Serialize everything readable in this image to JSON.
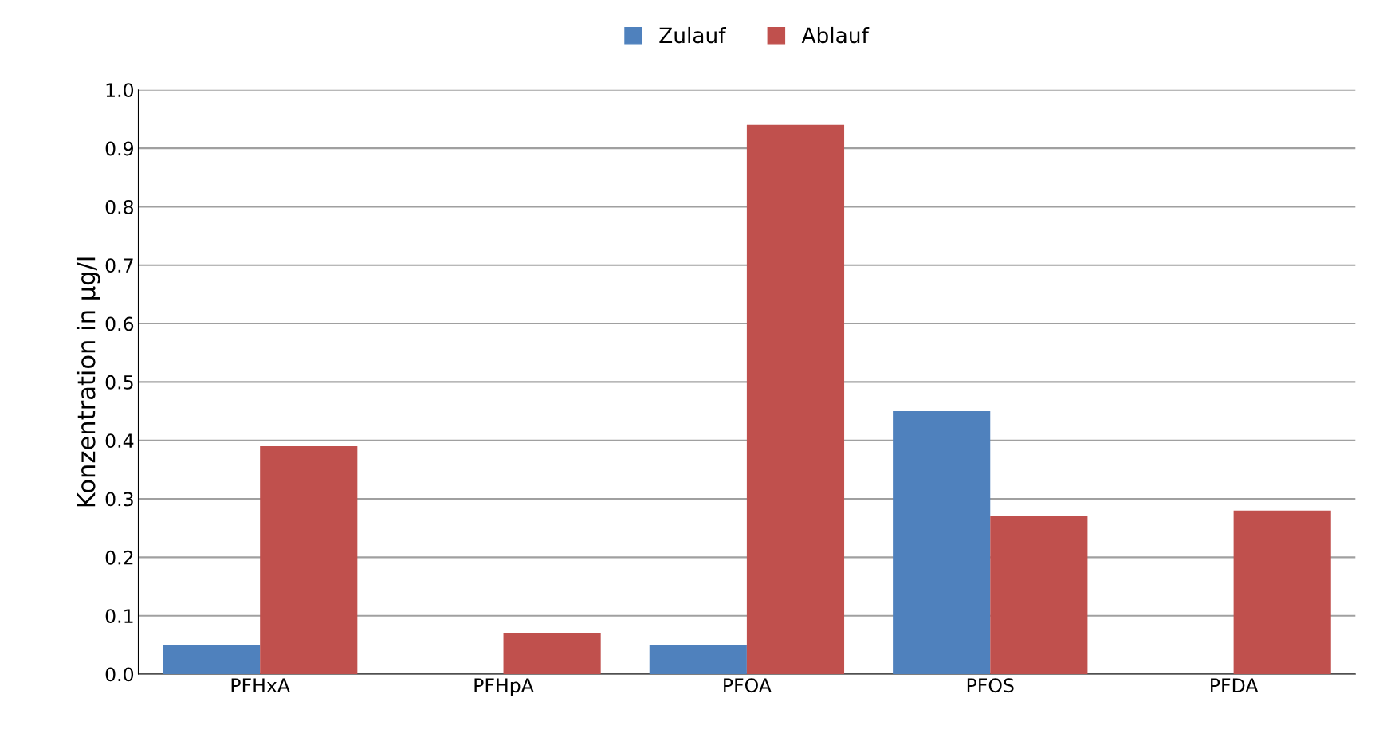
{
  "chart_data": {
    "type": "bar",
    "ylabel": "Konzentration in µg/l",
    "categories": [
      "PFHxA",
      "PFHpA",
      "PFOA",
      "PFOS",
      "PFDA"
    ],
    "series": [
      {
        "name": "Zulauf",
        "color": "#4f81bd",
        "values": [
          0.05,
          0,
          0.05,
          0.45,
          0
        ]
      },
      {
        "name": "Ablauf",
        "color": "#c0504d",
        "values": [
          0.39,
          0.07,
          0.94,
          0.27,
          0.28
        ]
      }
    ],
    "ylim": [
      0,
      1.0
    ],
    "yticks": [
      {
        "value": 0,
        "label": "0.0"
      },
      {
        "value": 0.1,
        "label": "0.1"
      },
      {
        "value": 0.2,
        "label": "0.2"
      },
      {
        "value": 0.3,
        "label": "0.3"
      },
      {
        "value": 0.4,
        "label": "0.4"
      },
      {
        "value": 0.5,
        "label": "0.5"
      },
      {
        "value": 0.6,
        "label": "0.6"
      },
      {
        "value": 0.7,
        "label": "0.7"
      },
      {
        "value": 0.8,
        "label": "0.8"
      },
      {
        "value": 0.9,
        "label": "0.9"
      },
      {
        "value": 1.0,
        "label": "1.0"
      }
    ],
    "grid": "y",
    "legend": "top"
  }
}
